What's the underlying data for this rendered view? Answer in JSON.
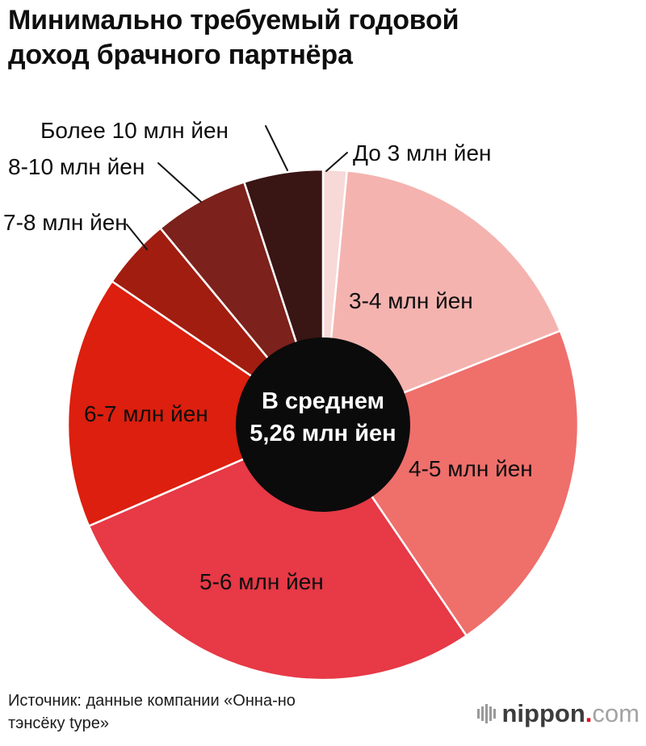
{
  "title": "Минимально требуемый годовой доход брачного партнёра",
  "center_label": {
    "line1": "В среднем",
    "line2": "5,26 млн йен",
    "bg": "#0b0b0b",
    "text_color": "#ffffff"
  },
  "source": {
    "text": "Источник: данные компании «Онна-но тэнсёку type»"
  },
  "logo": {
    "brand": "nippon",
    "dot": ".",
    "tld": "com",
    "brand_color": "#3c3c3c",
    "dot_color": "#e60012",
    "tld_color": "#a3a3a3"
  },
  "chart_data": {
    "type": "pie",
    "title": "Минимально требуемый годовой доход брачного партнёра",
    "donut": true,
    "center_note": "В среднем 5,26 млн йен",
    "direction": "clockwise",
    "start_angle_deg": 0,
    "values_unit": "% (estimated from arc angles, no numeric labels shown)",
    "segments": [
      {
        "label": "До 3 млн йен",
        "value": 1.5,
        "color": "#f7d9d7"
      },
      {
        "label": "3-4 млн йен",
        "value": 17.5,
        "color": "#f4b3af"
      },
      {
        "label": "4-5 млн йен",
        "value": 21.5,
        "color": "#ef6f6b"
      },
      {
        "label": "5-6 млн йен",
        "value": 28,
        "color": "#e73946"
      },
      {
        "label": "6-7 млн йен",
        "value": 16,
        "color": "#dc1f0e"
      },
      {
        "label": "7-8 млн йен",
        "value": 4.5,
        "color": "#a11d10"
      },
      {
        "label": "8-10 млн йен",
        "value": 6,
        "color": "#7c211b"
      },
      {
        "label": "Более 10 млн йен",
        "value": 5,
        "color": "#391514"
      }
    ]
  }
}
